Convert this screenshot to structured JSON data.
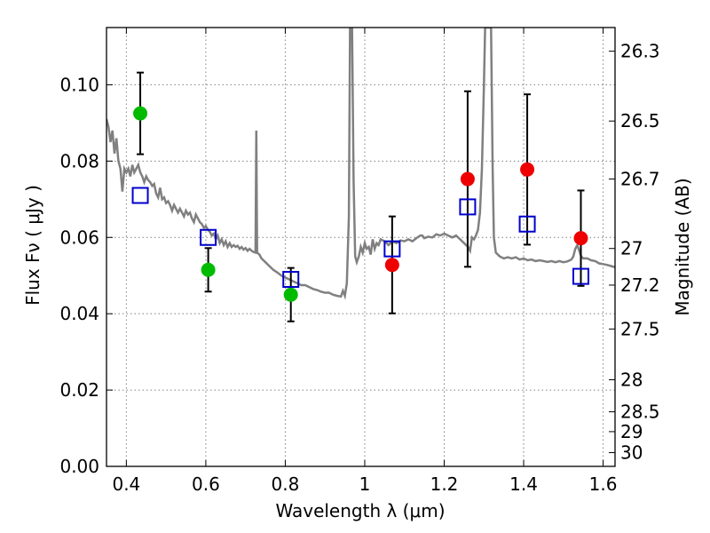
{
  "chart_data": {
    "type": "scatter",
    "xlabel": "Wavelength  λ (μm)",
    "ylabel": "Flux  Fν  ( μJy )",
    "y2label": "Magnitude (AB)",
    "xlim": [
      0.35,
      1.63
    ],
    "ylim": [
      0.0,
      0.115
    ],
    "x_ticks": [
      0.4,
      0.6,
      0.8,
      1.0,
      1.2,
      1.4,
      1.6
    ],
    "x_tick_labels": [
      "0.4",
      "0.6",
      "0.8",
      "1",
      "1.2",
      "1.4",
      "1.6"
    ],
    "y_ticks": [
      0.0,
      0.02,
      0.04,
      0.06,
      0.08,
      0.1
    ],
    "y_tick_labels": [
      "0.00",
      "0.02",
      "0.04",
      "0.06",
      "0.08",
      "0.10"
    ],
    "y2_ticks": [
      {
        "label": "26.3",
        "flux": 0.1088
      },
      {
        "label": "26.5",
        "flux": 0.0905
      },
      {
        "label": "26.7",
        "flux": 0.0753
      },
      {
        "label": "27",
        "flux": 0.0571
      },
      {
        "label": "27.2",
        "flux": 0.0475
      },
      {
        "label": "27.5",
        "flux": 0.036
      },
      {
        "label": "28",
        "flux": 0.0227
      },
      {
        "label": "28.5",
        "flux": 0.0143
      },
      {
        "label": "29",
        "flux": 0.0091
      },
      {
        "label": "30",
        "flux": 0.0036
      }
    ],
    "grid": true,
    "colors": {
      "green": "#00bb00",
      "red": "#ee0000",
      "square": "#0000cc",
      "model": "#808080",
      "errorbar": "#000000"
    },
    "series": [
      {
        "marker": "circle-green",
        "points": [
          {
            "x": 0.435,
            "y": 0.0925,
            "err": 0.0107
          },
          {
            "x": 0.606,
            "y": 0.0515,
            "err": 0.0057
          },
          {
            "x": 0.814,
            "y": 0.045,
            "err": 0.007
          }
        ]
      },
      {
        "marker": "circle-red",
        "points": [
          {
            "x": 1.069,
            "y": 0.0528,
            "err": 0.0127
          },
          {
            "x": 1.259,
            "y": 0.0753,
            "err": 0.023
          },
          {
            "x": 1.409,
            "y": 0.0778,
            "err": 0.0197
          },
          {
            "x": 1.544,
            "y": 0.0598,
            "err": 0.0125
          }
        ]
      },
      {
        "marker": "square-blue",
        "points": [
          {
            "x": 0.435,
            "y": 0.071
          },
          {
            "x": 0.606,
            "y": 0.06
          },
          {
            "x": 0.814,
            "y": 0.049
          },
          {
            "x": 1.069,
            "y": 0.057
          },
          {
            "x": 1.259,
            "y": 0.068
          },
          {
            "x": 1.409,
            "y": 0.0635
          },
          {
            "x": 1.544,
            "y": 0.0498
          }
        ]
      }
    ],
    "model_spectrum": [
      [
        0.35,
        0.091
      ],
      [
        0.355,
        0.089
      ],
      [
        0.36,
        0.085
      ],
      [
        0.365,
        0.088
      ],
      [
        0.37,
        0.082
      ],
      [
        0.375,
        0.086
      ],
      [
        0.38,
        0.08
      ],
      [
        0.385,
        0.078
      ],
      [
        0.39,
        0.072
      ],
      [
        0.395,
        0.078
      ],
      [
        0.4,
        0.077
      ],
      [
        0.405,
        0.078
      ],
      [
        0.41,
        0.076
      ],
      [
        0.415,
        0.079
      ],
      [
        0.42,
        0.077
      ],
      [
        0.425,
        0.078
      ],
      [
        0.43,
        0.079
      ],
      [
        0.435,
        0.077
      ],
      [
        0.44,
        0.076
      ],
      [
        0.445,
        0.0745
      ],
      [
        0.45,
        0.076
      ],
      [
        0.455,
        0.075
      ],
      [
        0.46,
        0.0745
      ],
      [
        0.465,
        0.0735
      ],
      [
        0.47,
        0.074
      ],
      [
        0.475,
        0.0715
      ],
      [
        0.48,
        0.0705
      ],
      [
        0.485,
        0.073
      ],
      [
        0.49,
        0.07
      ],
      [
        0.495,
        0.0705
      ],
      [
        0.5,
        0.069
      ],
      [
        0.505,
        0.0695
      ],
      [
        0.51,
        0.0685
      ],
      [
        0.515,
        0.067
      ],
      [
        0.52,
        0.0685
      ],
      [
        0.525,
        0.0675
      ],
      [
        0.53,
        0.0665
      ],
      [
        0.535,
        0.0675
      ],
      [
        0.54,
        0.0665
      ],
      [
        0.545,
        0.0655
      ],
      [
        0.55,
        0.067
      ],
      [
        0.555,
        0.066
      ],
      [
        0.56,
        0.0665
      ],
      [
        0.565,
        0.065
      ],
      [
        0.57,
        0.064
      ],
      [
        0.575,
        0.066
      ],
      [
        0.58,
        0.065
      ],
      [
        0.585,
        0.064
      ],
      [
        0.59,
        0.0635
      ],
      [
        0.595,
        0.0625
      ],
      [
        0.6,
        0.063
      ],
      [
        0.605,
        0.062
      ],
      [
        0.61,
        0.0615
      ],
      [
        0.615,
        0.0605
      ],
      [
        0.62,
        0.061
      ],
      [
        0.625,
        0.0595
      ],
      [
        0.63,
        0.0605
      ],
      [
        0.635,
        0.0585
      ],
      [
        0.64,
        0.0595
      ],
      [
        0.645,
        0.058
      ],
      [
        0.65,
        0.059
      ],
      [
        0.655,
        0.0575
      ],
      [
        0.66,
        0.0585
      ],
      [
        0.665,
        0.0575
      ],
      [
        0.67,
        0.058
      ],
      [
        0.675,
        0.0575
      ],
      [
        0.68,
        0.0578
      ],
      [
        0.685,
        0.057
      ],
      [
        0.69,
        0.0575
      ],
      [
        0.695,
        0.0568
      ],
      [
        0.7,
        0.0572
      ],
      [
        0.705,
        0.0565
      ],
      [
        0.71,
        0.057
      ],
      [
        0.715,
        0.0565
      ],
      [
        0.72,
        0.0562
      ],
      [
        0.725,
        0.056
      ],
      [
        0.727,
        0.088
      ],
      [
        0.729,
        0.056
      ],
      [
        0.735,
        0.0555
      ],
      [
        0.74,
        0.0545
      ],
      [
        0.75,
        0.0535
      ],
      [
        0.76,
        0.0525
      ],
      [
        0.77,
        0.0515
      ],
      [
        0.78,
        0.0508
      ],
      [
        0.79,
        0.05
      ],
      [
        0.8,
        0.0495
      ],
      [
        0.81,
        0.049
      ],
      [
        0.82,
        0.0485
      ],
      [
        0.83,
        0.048
      ],
      [
        0.84,
        0.0475
      ],
      [
        0.85,
        0.0475
      ],
      [
        0.86,
        0.047
      ],
      [
        0.87,
        0.0465
      ],
      [
        0.88,
        0.0462
      ],
      [
        0.89,
        0.0458
      ],
      [
        0.9,
        0.0455
      ],
      [
        0.91,
        0.0455
      ],
      [
        0.92,
        0.045
      ],
      [
        0.93,
        0.0447
      ],
      [
        0.94,
        0.0445
      ],
      [
        0.945,
        0.046
      ],
      [
        0.95,
        0.0447
      ],
      [
        0.955,
        0.048
      ],
      [
        0.96,
        0.0655
      ],
      [
        0.963,
        0.115
      ],
      [
        0.968,
        0.115
      ],
      [
        0.972,
        0.075
      ],
      [
        0.976,
        0.055
      ],
      [
        0.98,
        0.0535
      ],
      [
        0.985,
        0.055
      ],
      [
        0.99,
        0.0575
      ],
      [
        0.995,
        0.056
      ],
      [
        1.0,
        0.0585
      ],
      [
        1.005,
        0.057
      ],
      [
        1.01,
        0.0575
      ],
      [
        1.015,
        0.0555
      ],
      [
        1.02,
        0.0595
      ],
      [
        1.025,
        0.057
      ],
      [
        1.03,
        0.0585
      ],
      [
        1.035,
        0.058
      ],
      [
        1.04,
        0.0595
      ],
      [
        1.05,
        0.059
      ],
      [
        1.06,
        0.058
      ],
      [
        1.07,
        0.059
      ],
      [
        1.08,
        0.0585
      ],
      [
        1.09,
        0.0592
      ],
      [
        1.1,
        0.059
      ],
      [
        1.11,
        0.0595
      ],
      [
        1.12,
        0.059
      ],
      [
        1.13,
        0.0598
      ],
      [
        1.14,
        0.0605
      ],
      [
        1.145,
        0.0605
      ],
      [
        1.15,
        0.0598
      ],
      [
        1.16,
        0.0602
      ],
      [
        1.17,
        0.06
      ],
      [
        1.18,
        0.0608
      ],
      [
        1.19,
        0.0605
      ],
      [
        1.2,
        0.061
      ],
      [
        1.21,
        0.0605
      ],
      [
        1.22,
        0.06
      ],
      [
        1.23,
        0.0605
      ],
      [
        1.24,
        0.0595
      ],
      [
        1.25,
        0.0585
      ],
      [
        1.255,
        0.058
      ],
      [
        1.26,
        0.0575
      ],
      [
        1.265,
        0.0565
      ],
      [
        1.27,
        0.06
      ],
      [
        1.275,
        0.0595
      ],
      [
        1.28,
        0.0605
      ],
      [
        1.285,
        0.062
      ],
      [
        1.29,
        0.0665
      ],
      [
        1.295,
        0.078
      ],
      [
        1.3,
        0.1
      ],
      [
        1.303,
        0.115
      ],
      [
        1.318,
        0.115
      ],
      [
        1.322,
        0.078
      ],
      [
        1.325,
        0.06
      ],
      [
        1.33,
        0.056
      ],
      [
        1.34,
        0.055
      ],
      [
        1.35,
        0.0545
      ],
      [
        1.36,
        0.0548
      ],
      [
        1.37,
        0.0545
      ],
      [
        1.38,
        0.0548
      ],
      [
        1.39,
        0.0542
      ],
      [
        1.4,
        0.0545
      ],
      [
        1.41,
        0.054
      ],
      [
        1.42,
        0.0542
      ],
      [
        1.43,
        0.0538
      ],
      [
        1.44,
        0.054
      ],
      [
        1.45,
        0.0538
      ],
      [
        1.46,
        0.0536
      ],
      [
        1.47,
        0.0538
      ],
      [
        1.48,
        0.0535
      ],
      [
        1.49,
        0.0538
      ],
      [
        1.5,
        0.0535
      ],
      [
        1.51,
        0.0537
      ],
      [
        1.52,
        0.0542
      ],
      [
        1.525,
        0.055
      ],
      [
        1.53,
        0.057
      ],
      [
        1.535,
        0.058
      ],
      [
        1.54,
        0.0565
      ],
      [
        1.545,
        0.055
      ],
      [
        1.55,
        0.0545
      ],
      [
        1.56,
        0.0545
      ],
      [
        1.57,
        0.054
      ],
      [
        1.58,
        0.0538
      ],
      [
        1.59,
        0.0532
      ],
      [
        1.6,
        0.053
      ],
      [
        1.61,
        0.0528
      ],
      [
        1.62,
        0.0525
      ],
      [
        1.63,
        0.0522
      ]
    ]
  }
}
